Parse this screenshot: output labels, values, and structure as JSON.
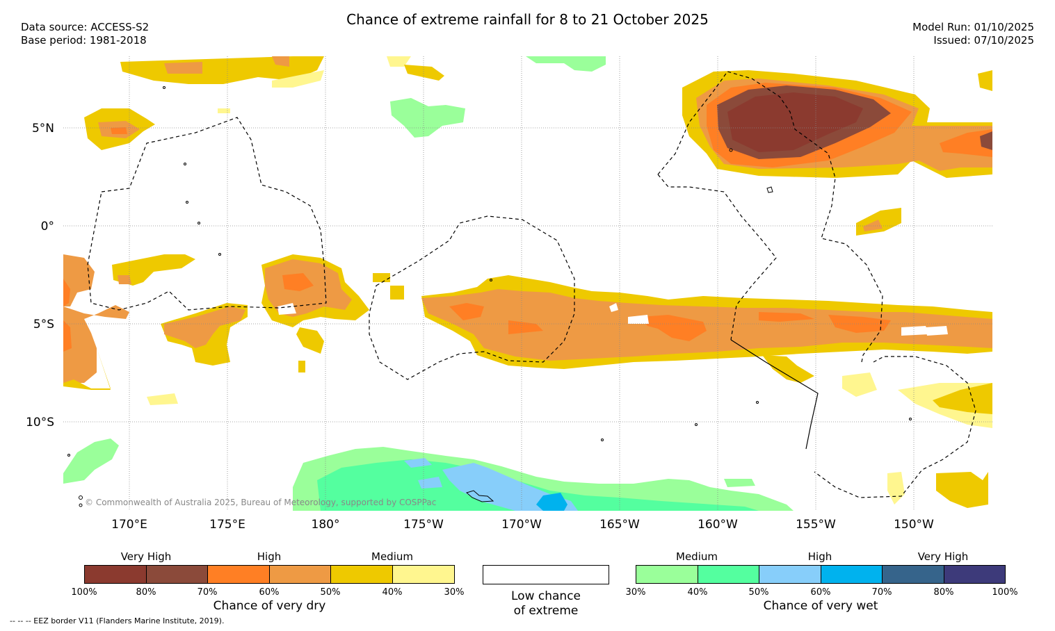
{
  "title": "Chance of extreme rainfall for 8 to 21 October 2025",
  "meta": {
    "data_source": "Data source: ACCESS-S2",
    "base_period": "Base period: 1981-2018",
    "model_run": "Model Run: 01/10/2025",
    "issued": "Issued: 07/10/2025"
  },
  "lat_labels": [
    "5°N",
    "0°",
    "5°S",
    "10°S"
  ],
  "lon_labels": [
    "170°E",
    "175°E",
    "180°",
    "175°W",
    "170°W",
    "165°W",
    "160°W",
    "155°W",
    "150°W"
  ],
  "copyright": "© Commonwealth of Australia 2025, Bureau of Meteorology, supported by COSPPac",
  "legend": {
    "dry": {
      "title": "Chance of very dry",
      "categories": [
        "Very High",
        "High",
        "Medium"
      ],
      "colors": [
        "#8b3a2f",
        "#8b4a3a",
        "#ff7f24",
        "#ee9a44",
        "#eec900",
        "#fff68f"
      ],
      "ticks": [
        "100%",
        "80%",
        "70%",
        "60%",
        "50%",
        "40%",
        "30%"
      ]
    },
    "low": {
      "title_line1": "Low chance",
      "title_line2": "of extreme",
      "color": "#ffffff"
    },
    "wet": {
      "title": "Chance of very wet",
      "categories": [
        "Medium",
        "High",
        "Very High"
      ],
      "colors": [
        "#9aff9a",
        "#54ff9f",
        "#87cefa",
        "#00b2ee",
        "#36648b",
        "#3d3a7a"
      ],
      "ticks": [
        "30%",
        "40%",
        "50%",
        "60%",
        "70%",
        "80%",
        "100%"
      ]
    }
  },
  "eez_note": "-- -- -- EEZ border V11 (Flanders Marine Institute, 2019)."
}
